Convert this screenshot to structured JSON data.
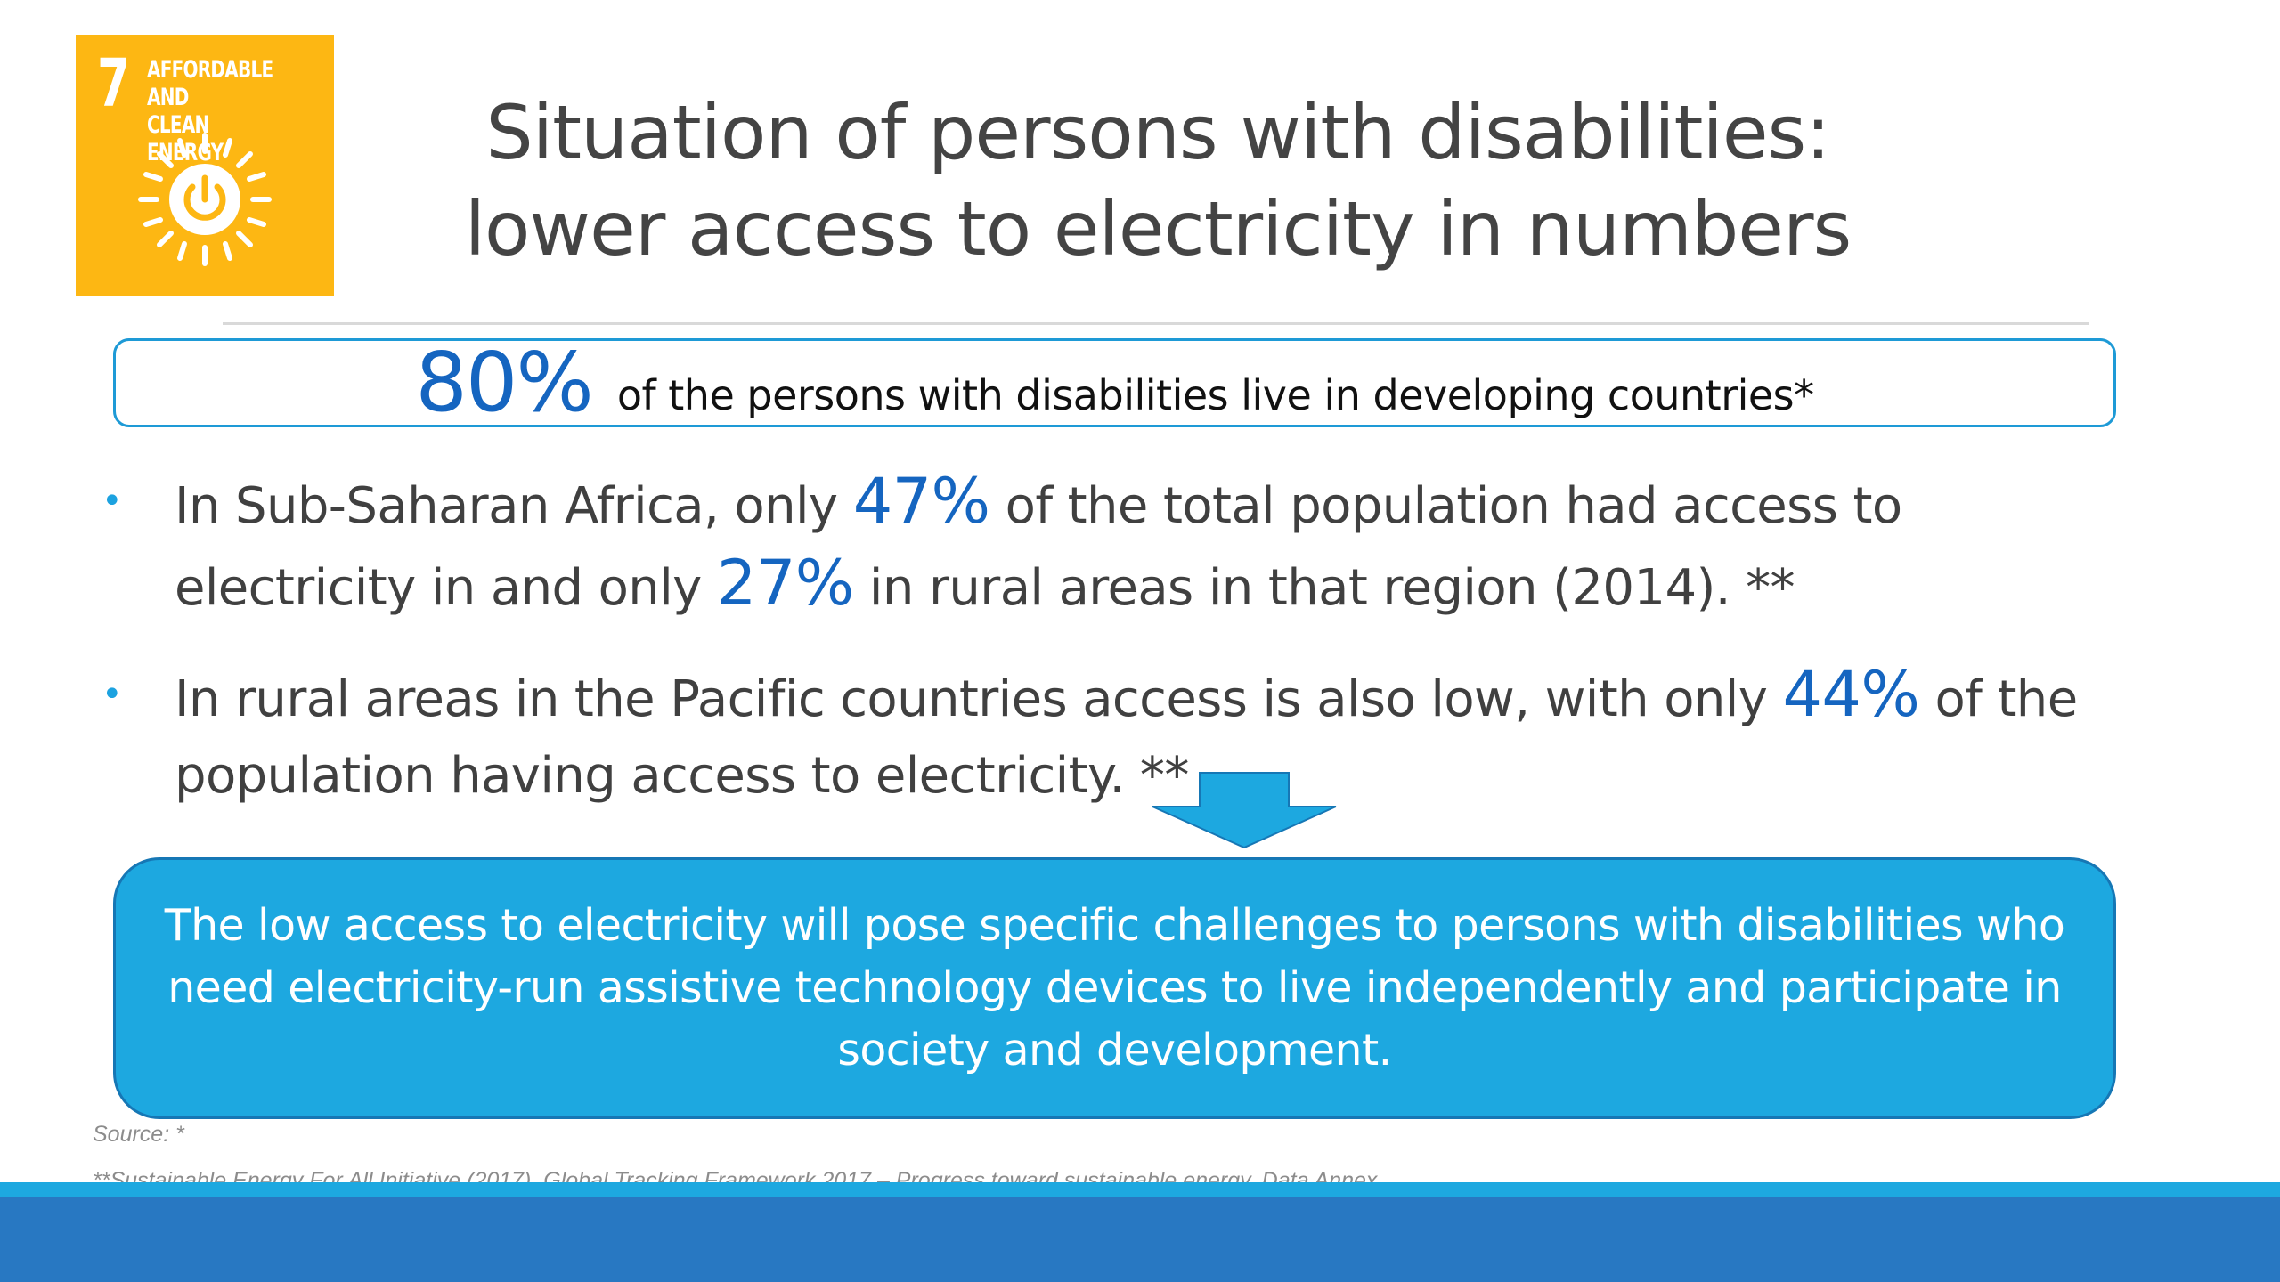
{
  "badge": {
    "number": "7",
    "label": "AFFORDABLE AND\nCLEAN ENERGY",
    "color": "#FDB713",
    "icon": "sun-power-icon"
  },
  "title": {
    "line1": "Situation of persons with disabilities:",
    "line2": "lower access to electricity in numbers"
  },
  "stat": {
    "value": "80%",
    "text": "of the persons with disabilities live in developing countries*"
  },
  "bullets": [
    {
      "l1_pre": "In Sub-Saharan Africa, only ",
      "l1_val": "47%",
      "l1_post": " of the total population had access to",
      "l2_pre": "electricity in and only ",
      "l2_val": "27%",
      "l2_post": " in rural areas in that region (2014). **"
    },
    {
      "l1_pre": "In rural areas in the Pacific countries access is also low, with only ",
      "l1_val": "44%",
      "l1_post": " of the",
      "l2": "population having access to electricity. **"
    }
  ],
  "callout": {
    "line1": "The low access to electricity will pose specific challenges to persons with disabilities who",
    "line2": "need electricity-run assistive technology devices to live independently and participate in",
    "line3": "society and development."
  },
  "source": "Source: *",
  "footnote": "**Sustainable Energy For All Initiative (2017). Global Tracking Framework 2017 – Progress toward sustainable energy. Data Annex",
  "colors": {
    "accent": "#1DA8E0",
    "highlight": "#1565C0",
    "footer": "#2878C2"
  }
}
